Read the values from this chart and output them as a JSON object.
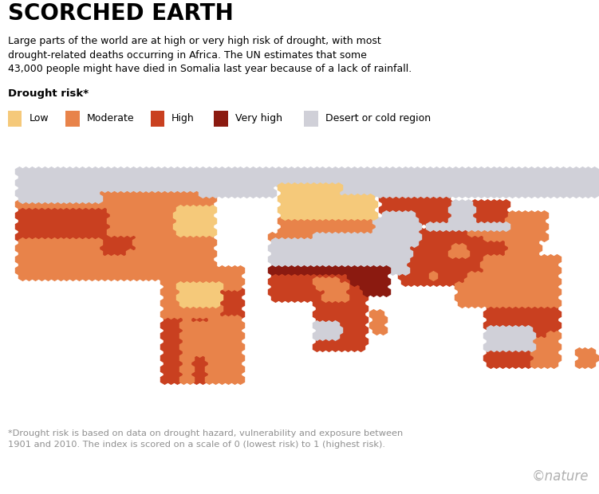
{
  "title": "SCORCHED EARTH",
  "subtitle": "Large parts of the world are at high or very high risk of drought, with most\ndrought-related deaths occurring in Africa. The UN estimates that some\n43,000 people might have died in Somalia last year because of a lack of rainfall.",
  "legend_title": "Drought risk*",
  "legend_labels": [
    "Low",
    "Moderate",
    "High",
    "Very high",
    "Desert or cold region"
  ],
  "legend_colors": [
    "#F5C97A",
    "#E8834A",
    "#C94020",
    "#8B1A10",
    "#D0D0D8"
  ],
  "footnote": "*Drought risk is based on data on drought hazard, vulnerability and exposure between\n1901 and 2010. The index is scored on a scale of 0 (lowest risk) to 1 (highest risk).",
  "nature_credit": "©nature",
  "background_color": "#FFFFFF",
  "ocean_color": "#FFFFFF"
}
